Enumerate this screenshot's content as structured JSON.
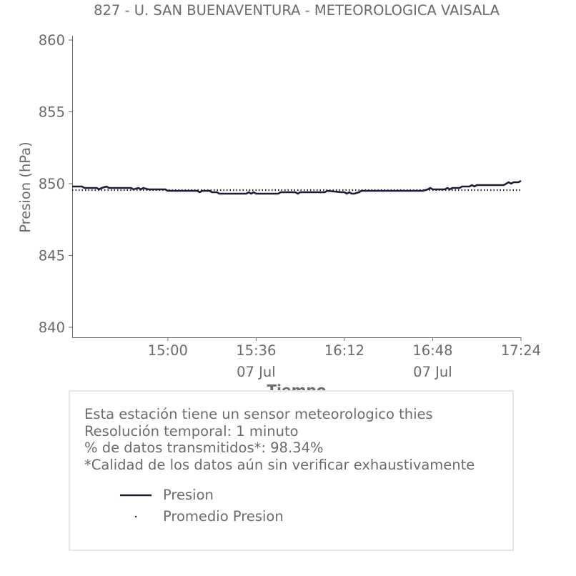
{
  "chart_data": {
    "type": "line",
    "title": "827 - U. SAN BUENAVENTURA - METEOROLOGICA VAISALA",
    "xlabel": "Tiempo",
    "ylabel": "Presion (hPa)",
    "ylim": [
      839.3,
      860.3
    ],
    "xlim": [
      "14:21",
      "17:24"
    ],
    "y_ticks": [
      "840",
      "845",
      "850",
      "855",
      "860"
    ],
    "x_ticks": [
      {
        "time": "15:00",
        "label": "15:00",
        "sublabel": ""
      },
      {
        "time": "15:36",
        "label": "15:36",
        "sublabel": "07 Jul"
      },
      {
        "time": "16:12",
        "label": "16:12",
        "sublabel": ""
      },
      {
        "time": "16:48",
        "label": "16:48",
        "sublabel": "07 Jul"
      },
      {
        "time": "17:24",
        "label": "17:24",
        "sublabel": ""
      }
    ],
    "grid": false,
    "legend_position": "bottom",
    "series": [
      {
        "name": "Presion",
        "color": "#1c1c3a",
        "style": "solid",
        "points": [
          [
            "14:21",
            849.8
          ],
          [
            "14:25",
            849.8
          ],
          [
            "14:26",
            849.7
          ],
          [
            "14:31",
            849.7
          ],
          [
            "14:32",
            849.6
          ],
          [
            "14:33",
            849.7
          ],
          [
            "14:35",
            849.8
          ],
          [
            "14:36",
            849.7
          ],
          [
            "14:45",
            849.7
          ],
          [
            "14:46",
            849.6
          ],
          [
            "14:48",
            849.7
          ],
          [
            "14:49",
            849.6
          ],
          [
            "14:50",
            849.7
          ],
          [
            "14:52",
            849.6
          ],
          [
            "14:59",
            849.6
          ],
          [
            "15:00",
            849.5
          ],
          [
            "15:12",
            849.5
          ],
          [
            "15:13",
            849.4
          ],
          [
            "15:14",
            849.5
          ],
          [
            "15:17",
            849.5
          ],
          [
            "15:18",
            849.4
          ],
          [
            "15:20",
            849.4
          ],
          [
            "15:21",
            849.3
          ],
          [
            "15:32",
            849.3
          ],
          [
            "15:33",
            849.4
          ],
          [
            "15:34",
            849.3
          ],
          [
            "15:35",
            849.4
          ],
          [
            "15:36",
            849.3
          ],
          [
            "15:45",
            849.3
          ],
          [
            "15:46",
            849.4
          ],
          [
            "15:52",
            849.4
          ],
          [
            "15:53",
            849.3
          ],
          [
            "15:54",
            849.4
          ],
          [
            "16:04",
            849.4
          ],
          [
            "16:05",
            849.5
          ],
          [
            "16:11",
            849.4
          ],
          [
            "16:12",
            849.4
          ],
          [
            "16:13",
            849.3
          ],
          [
            "16:14",
            849.4
          ],
          [
            "16:15",
            849.3
          ],
          [
            "16:16",
            849.3
          ],
          [
            "16:18",
            849.4
          ],
          [
            "16:19",
            849.5
          ],
          [
            "16:22",
            849.5
          ],
          [
            "16:25",
            849.5
          ],
          [
            "16:44",
            849.5
          ],
          [
            "16:46",
            849.6
          ],
          [
            "16:47",
            849.7
          ],
          [
            "16:48",
            849.6
          ],
          [
            "16:53",
            849.6
          ],
          [
            "16:54",
            849.7
          ],
          [
            "16:55",
            849.6
          ],
          [
            "16:56",
            849.7
          ],
          [
            "16:59",
            849.7
          ],
          [
            "17:00",
            849.8
          ],
          [
            "17:03",
            849.8
          ],
          [
            "17:04",
            849.9
          ],
          [
            "17:05",
            849.8
          ],
          [
            "17:06",
            849.9
          ],
          [
            "17:17",
            849.9
          ],
          [
            "17:18",
            850.0
          ],
          [
            "17:19",
            850.1
          ],
          [
            "17:20",
            850.0
          ],
          [
            "17:21",
            850.1
          ],
          [
            "17:23",
            850.1
          ],
          [
            "17:24",
            850.2
          ]
        ]
      },
      {
        "name": "Promedio Presion",
        "color": "#1c1c3a",
        "style": "dotted",
        "constant": 849.55
      }
    ]
  },
  "info": {
    "lines": [
      "Esta estación tiene un sensor meteorologico thies",
      "Resolución temporal: 1 minuto",
      "% de datos transmitidos*: 98.34%",
      "*Calidad de los datos aún sin verificar exhaustivamente"
    ]
  },
  "legend": [
    {
      "label": "Presion",
      "style": "solid"
    },
    {
      "label": "Promedio Presion",
      "style": "dotted"
    }
  ]
}
